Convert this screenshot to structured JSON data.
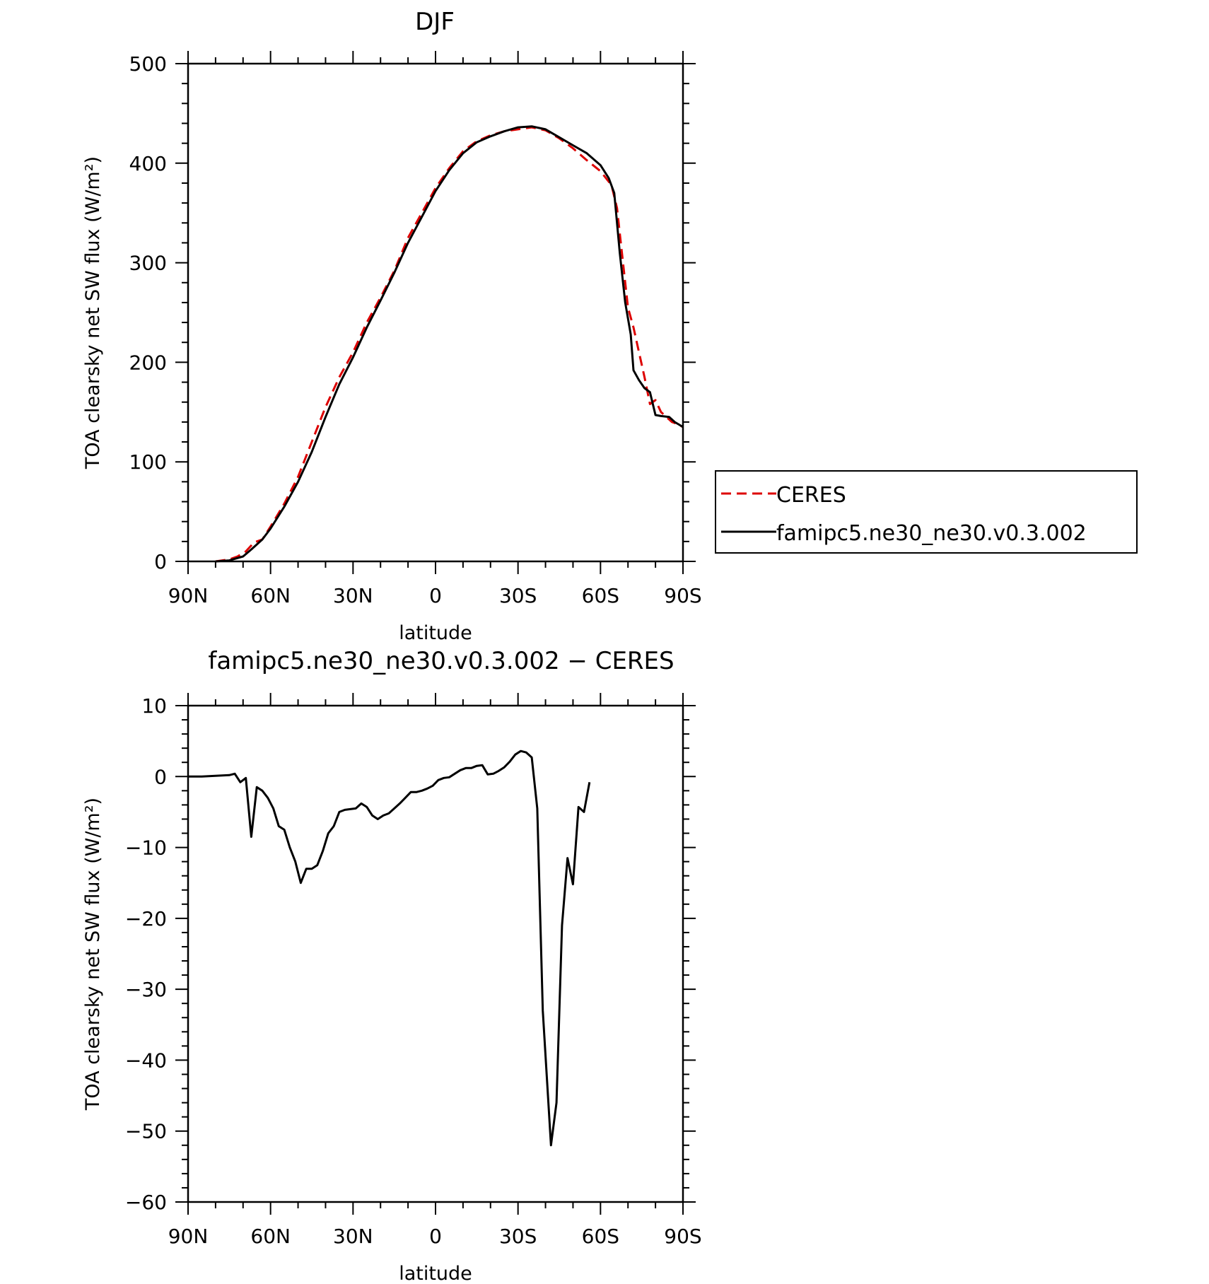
{
  "chart_data": [
    {
      "type": "line",
      "title": "DJF",
      "xlabel": "latitude",
      "ylabel": "TOA clearsky net SW flux (W/m²)",
      "xlim": [
        90,
        -90
      ],
      "ylim": [
        0,
        500
      ],
      "xticks": [
        {
          "value": 90,
          "label": "90N"
        },
        {
          "value": 60,
          "label": "60N"
        },
        {
          "value": 30,
          "label": "30N"
        },
        {
          "value": 0,
          "label": "0"
        },
        {
          "value": -30,
          "label": "30S"
        },
        {
          "value": -60,
          "label": "60S"
        },
        {
          "value": -90,
          "label": "90S"
        }
      ],
      "yticks": [
        {
          "value": 0,
          "label": "0"
        },
        {
          "value": 100,
          "label": "100"
        },
        {
          "value": 200,
          "label": "200"
        },
        {
          "value": 300,
          "label": "300"
        },
        {
          "value": 400,
          "label": "400"
        },
        {
          "value": 500,
          "label": "500"
        }
      ],
      "legend_position": "right",
      "series": [
        {
          "name": "CERES",
          "color": "#dd0000",
          "style": "dashed",
          "points": [
            [
              80,
              0
            ],
            [
              75,
              2
            ],
            [
              72,
              5
            ],
            [
              69,
              10
            ],
            [
              66,
              19
            ],
            [
              63,
              22
            ],
            [
              60,
              35
            ],
            [
              55,
              58
            ],
            [
              50,
              85
            ],
            [
              45,
              120
            ],
            [
              40,
              155
            ],
            [
              35,
              185
            ],
            [
              30,
              210
            ],
            [
              25,
              240
            ],
            [
              20,
              265
            ],
            [
              15,
              292
            ],
            [
              10,
              325
            ],
            [
              5,
              350
            ],
            [
              0,
              375
            ],
            [
              -5,
              395
            ],
            [
              -10,
              412
            ],
            [
              -15,
              422
            ],
            [
              -20,
              428
            ],
            [
              -25,
              432
            ],
            [
              -30,
              434
            ],
            [
              -35,
              436
            ],
            [
              -40,
              433
            ],
            [
              -45,
              425
            ],
            [
              -50,
              415
            ],
            [
              -55,
              403
            ],
            [
              -60,
              392
            ],
            [
              -64,
              378
            ],
            [
              -66,
              355
            ],
            [
              -68,
              305
            ],
            [
              -70,
              255
            ],
            [
              -72,
              235
            ],
            [
              -74,
              210
            ],
            [
              -76,
              185
            ],
            [
              -78,
              158
            ],
            [
              -80,
              162
            ],
            [
              -82,
              150
            ],
            [
              -84,
              145
            ],
            [
              -86,
              140
            ],
            [
              -88,
              138
            ],
            [
              -90,
              135
            ]
          ]
        },
        {
          "name": "famipc5.ne30_ne30.v0.3.002",
          "color": "#000000",
          "style": "solid",
          "points": [
            [
              80,
              0
            ],
            [
              75,
              1
            ],
            [
              70,
              5
            ],
            [
              67,
              12
            ],
            [
              63,
              22
            ],
            [
              60,
              33
            ],
            [
              55,
              55
            ],
            [
              50,
              80
            ],
            [
              45,
              110
            ],
            [
              40,
              145
            ],
            [
              35,
              178
            ],
            [
              30,
              205
            ],
            [
              25,
              235
            ],
            [
              20,
              262
            ],
            [
              15,
              290
            ],
            [
              10,
              320
            ],
            [
              5,
              346
            ],
            [
              0,
              372
            ],
            [
              -5,
              393
            ],
            [
              -10,
              410
            ],
            [
              -15,
              421
            ],
            [
              -20,
              427
            ],
            [
              -25,
              432
            ],
            [
              -30,
              436
            ],
            [
              -35,
              437
            ],
            [
              -40,
              434
            ],
            [
              -45,
              426
            ],
            [
              -50,
              418
            ],
            [
              -55,
              410
            ],
            [
              -60,
              398
            ],
            [
              -63,
              385
            ],
            [
              -65,
              370
            ],
            [
              -67,
              310
            ],
            [
              -69,
              260
            ],
            [
              -71,
              228
            ],
            [
              -72,
              192
            ],
            [
              -74,
              182
            ],
            [
              -76,
              174
            ],
            [
              -78,
              170
            ],
            [
              -80,
              147
            ],
            [
              -82,
              146
            ],
            [
              -85,
              145
            ],
            [
              -87,
              140
            ],
            [
              -90,
              135
            ]
          ]
        }
      ]
    },
    {
      "type": "line",
      "title": "famipc5.ne30_ne30.v0.3.002 − CERES",
      "xlabel": "latitude",
      "ylabel": "TOA clearsky net SW flux (W/m²)",
      "xlim": [
        90,
        -90
      ],
      "ylim": [
        -60,
        10
      ],
      "xticks": [
        {
          "value": 90,
          "label": "90N"
        },
        {
          "value": 60,
          "label": "60N"
        },
        {
          "value": 30,
          "label": "30N"
        },
        {
          "value": 0,
          "label": "0"
        },
        {
          "value": -30,
          "label": "30S"
        },
        {
          "value": -60,
          "label": "60S"
        },
        {
          "value": -90,
          "label": "90S"
        }
      ],
      "yticks": [
        {
          "value": 10,
          "label": "10"
        },
        {
          "value": 0,
          "label": "0"
        },
        {
          "value": -10,
          "label": "−10"
        },
        {
          "value": -20,
          "label": "−20"
        },
        {
          "value": -30,
          "label": "−30"
        },
        {
          "value": -40,
          "label": "−40"
        },
        {
          "value": -50,
          "label": "−50"
        },
        {
          "value": -60,
          "label": "−60"
        }
      ],
      "series": [
        {
          "color": "#000000",
          "style": "solid",
          "points": [
            [
              90,
              0
            ],
            [
              85,
              0
            ],
            [
              80,
              0.1
            ],
            [
              75,
              0.2
            ],
            [
              73,
              0.4
            ],
            [
              71,
              -0.8
            ],
            [
              69,
              -0.2
            ],
            [
              67,
              -8.5
            ],
            [
              65,
              -1.5
            ],
            [
              63,
              -2
            ],
            [
              61,
              -3
            ],
            [
              59,
              -4.5
            ],
            [
              57,
              -7
            ],
            [
              55,
              -7.5
            ],
            [
              53,
              -10
            ],
            [
              51,
              -12
            ],
            [
              49,
              -15
            ],
            [
              47,
              -13
            ],
            [
              45,
              -13
            ],
            [
              43,
              -12.5
            ],
            [
              41,
              -10.5
            ],
            [
              39,
              -8
            ],
            [
              37,
              -7
            ],
            [
              35,
              -5
            ],
            [
              33,
              -4.7
            ],
            [
              31,
              -4.6
            ],
            [
              29,
              -4.5
            ],
            [
              27,
              -3.8
            ],
            [
              25,
              -4.3
            ],
            [
              23,
              -5.5
            ],
            [
              21,
              -6
            ],
            [
              19,
              -5.5
            ],
            [
              17,
              -5.2
            ],
            [
              15,
              -4.5
            ],
            [
              13,
              -3.8
            ],
            [
              11,
              -3
            ],
            [
              9,
              -2.2
            ],
            [
              7,
              -2.2
            ],
            [
              5,
              -2
            ],
            [
              3,
              -1.7
            ],
            [
              1,
              -1.3
            ],
            [
              -1,
              -0.5
            ],
            [
              -3,
              -0.2
            ],
            [
              -5,
              -0.1
            ],
            [
              -7,
              0.4
            ],
            [
              -9,
              0.9
            ],
            [
              -11,
              1.2
            ],
            [
              -13,
              1.2
            ],
            [
              -15,
              1.5
            ],
            [
              -17,
              1.6
            ],
            [
              -19,
              0.3
            ],
            [
              -21,
              0.4
            ],
            [
              -23,
              0.8
            ],
            [
              -25,
              1.3
            ],
            [
              -27,
              2.1
            ],
            [
              -29,
              3.1
            ],
            [
              -31,
              3.6
            ],
            [
              -33,
              3.4
            ],
            [
              -35,
              2.7
            ],
            [
              -37,
              -4.5
            ],
            [
              -39,
              -33
            ],
            [
              -42,
              -52
            ],
            [
              -44,
              -46
            ],
            [
              -46,
              -21
            ],
            [
              -48,
              -11.5
            ],
            [
              -50,
              -15.2
            ],
            [
              -52,
              -4.3
            ],
            [
              -54,
              -5
            ],
            [
              -56,
              -0.8
            ]
          ]
        }
      ]
    }
  ]
}
